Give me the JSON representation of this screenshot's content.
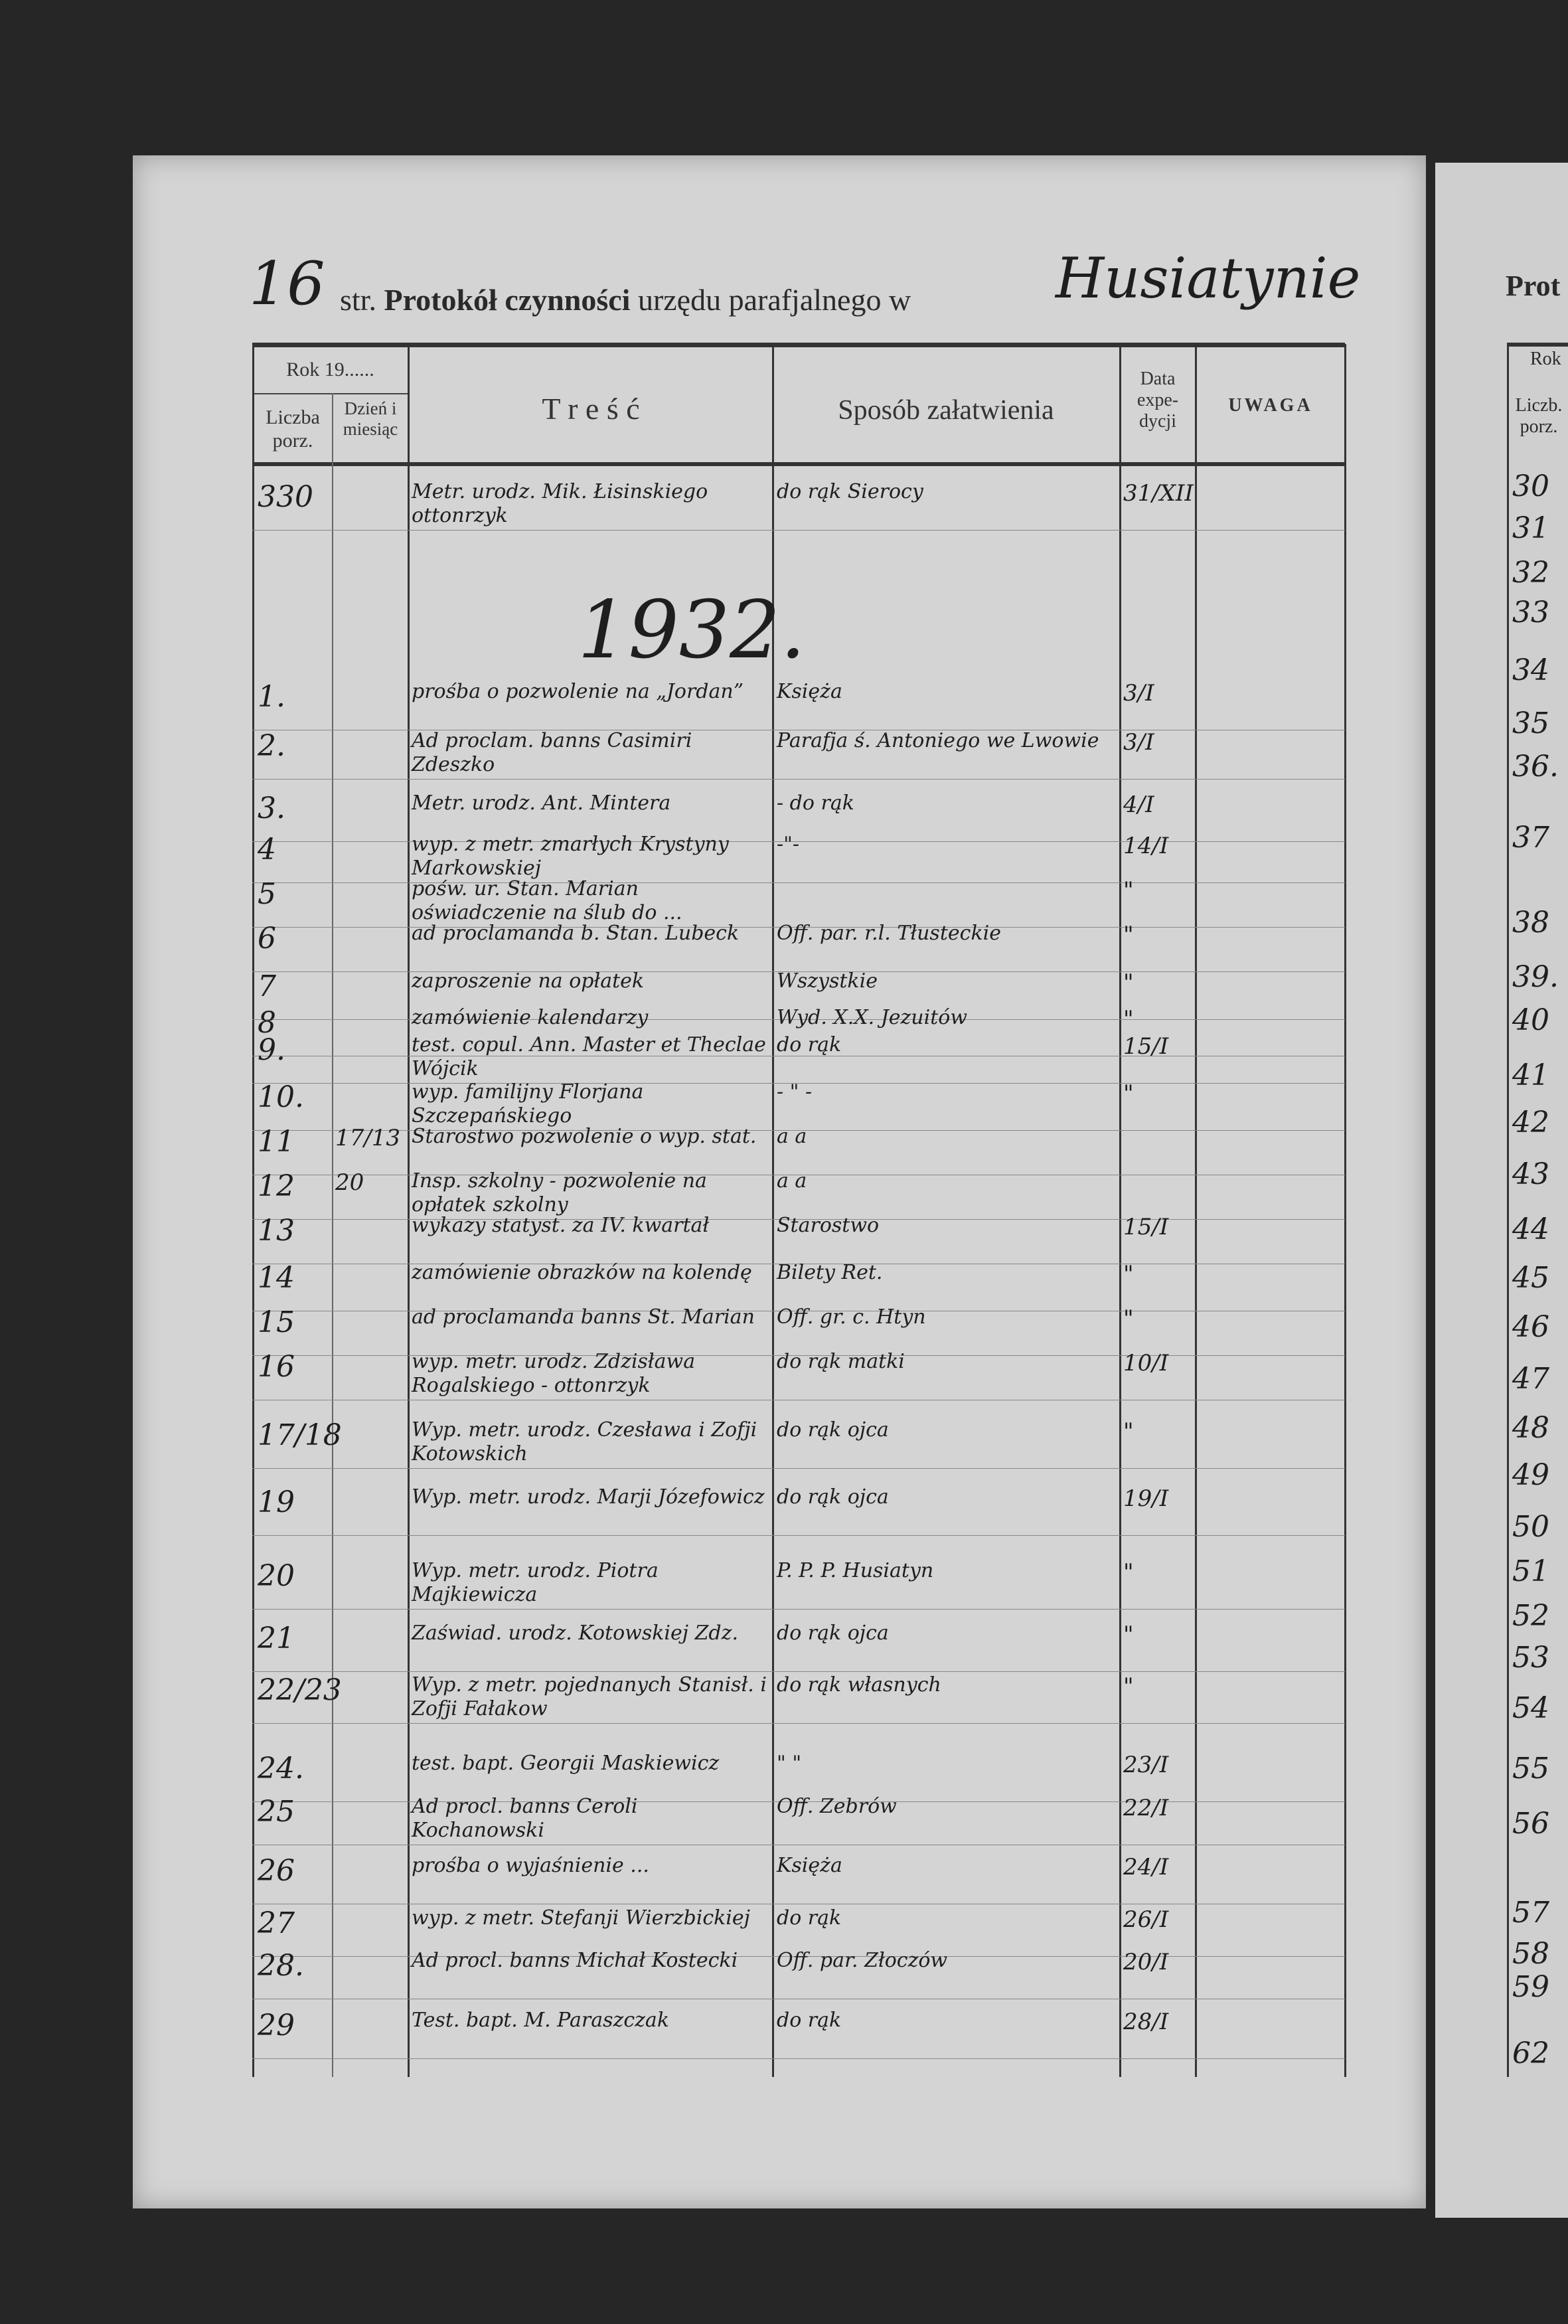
{
  "header": {
    "page_number": "16",
    "prefix": "str.",
    "title_bold": "Protokół czynności",
    "title_rest": "urzędu parafjalnego w",
    "place": "Husiatynie"
  },
  "columns": {
    "rok": "Rok 19......",
    "liczba": "Liczba porz.",
    "dzien": "Dzień i miesiąc",
    "tresc": "T r e ś ć",
    "sposob": "Sposób załatwienia",
    "data": "Data expe- dycji",
    "uwaga": "UWAGA"
  },
  "year_heading": "1932.",
  "entries": [
    {
      "no": "330",
      "day": "",
      "tresc": "Metr. urodz. Mik. Łisinskiego ottonrzyk",
      "sposob": "do rąk Sierocy",
      "data": "31/XII"
    },
    {
      "no": "1.",
      "day": "",
      "tresc": "prośba o pozwolenie na „Jordan”",
      "sposob": "Księża",
      "data": "3/I"
    },
    {
      "no": "2.",
      "day": "",
      "tresc": "Ad proclam. banns Casimiri Zdeszko",
      "sposob": "Parafja ś. Antoniego we Lwowie",
      "data": "3/I"
    },
    {
      "no": "3.",
      "day": "",
      "tresc": "Metr. urodz. Ant. Mintera",
      "sposob": "- do rąk",
      "data": "4/I"
    },
    {
      "no": "4",
      "day": "",
      "tresc": "wyp. z metr. zmarłych Krystyny Markowskiej",
      "sposob": "-\"-",
      "data": "14/I"
    },
    {
      "no": "5",
      "day": "",
      "tresc": "pośw. ur. Stan. Marian oświadczenie na ślub do ...",
      "sposob": "",
      "data": "\""
    },
    {
      "no": "6",
      "day": "",
      "tresc": "ad proclamanda b. Stan. Lubeck",
      "sposob": "Off. par. r.l. Tłusteckie",
      "data": "\""
    },
    {
      "no": "7",
      "day": "",
      "tresc": "zaproszenie na opłatek",
      "sposob": "Wszystkie",
      "data": "\""
    },
    {
      "no": "8",
      "day": "",
      "tresc": "zamówienie kalendarzy",
      "sposob": "Wyd. X.X. Jezuitów",
      "data": "\""
    },
    {
      "no": "9.",
      "day": "",
      "tresc": "test. copul. Ann. Master et Theclae Wójcik",
      "sposob": "do rąk",
      "data": "15/I"
    },
    {
      "no": "10.",
      "day": "",
      "tresc": "wyp. familijny Florjana Szczepańskiego",
      "sposob": "- \" -",
      "data": "\""
    },
    {
      "no": "11",
      "day": "17/13",
      "tresc": "Starostwo pozwolenie o wyp. stat.",
      "sposob": "a a",
      "data": ""
    },
    {
      "no": "12",
      "day": "20",
      "tresc": "Insp. szkolny - pozwolenie na opłatek szkolny",
      "sposob": "a a",
      "data": ""
    },
    {
      "no": "13",
      "day": "",
      "tresc": "wykazy statyst. za IV. kwartał",
      "sposob": "Starostwo",
      "data": "15/I"
    },
    {
      "no": "14",
      "day": "",
      "tresc": "zamówienie obrazków na kolendę",
      "sposob": "Bilety Ret.",
      "data": "\""
    },
    {
      "no": "15",
      "day": "",
      "tresc": "ad proclamanda banns St. Marian",
      "sposob": "Off. gr. c. Htyn",
      "data": "\""
    },
    {
      "no": "16",
      "day": "",
      "tresc": "wyp. metr. urodz. Zdzisława Rogalskiego - ottonrzyk",
      "sposob": "do rąk matki",
      "data": "10/I"
    },
    {
      "no": "17/18",
      "day": "",
      "tresc": "Wyp. metr. urodz. Czesława i Zofji Kotowskich",
      "sposob": "do rąk ojca",
      "data": "\""
    },
    {
      "no": "19",
      "day": "",
      "tresc": "Wyp. metr. urodz. Marji Józefowicz",
      "sposob": "do rąk ojca",
      "data": "19/I"
    },
    {
      "no": "20",
      "day": "",
      "tresc": "Wyp. metr. urodz. Piotra Majkiewicza",
      "sposob": "P. P. P. Husiatyn",
      "data": "\""
    },
    {
      "no": "21",
      "day": "",
      "tresc": "Zaświad. urodz. Kotowskiej Zdz.",
      "sposob": "do rąk ojca",
      "data": "\""
    },
    {
      "no": "22/23",
      "day": "",
      "tresc": "Wyp. z metr. pojednanych Stanisł. i Zofji Fałakow",
      "sposob": "do rąk własnych",
      "data": "\""
    },
    {
      "no": "24.",
      "day": "",
      "tresc": "test. bapt. Georgii Maskiewicz",
      "sposob": "\" \"",
      "data": "23/I"
    },
    {
      "no": "25",
      "day": "",
      "tresc": "Ad procl. banns Ceroli Kochanowski",
      "sposob": "Off. Zebrów",
      "data": "22/I"
    },
    {
      "no": "26",
      "day": "",
      "tresc": "prośba o wyjaśnienie ...",
      "sposob": "Księża",
      "data": "24/I"
    },
    {
      "no": "27",
      "day": "",
      "tresc": "wyp. z metr. Stefanji Wierzbickiej",
      "sposob": "do rąk",
      "data": "26/I"
    },
    {
      "no": "28.",
      "day": "",
      "tresc": "Ad procl. banns Michał Kostecki",
      "sposob": "Off. par. Złoczów",
      "data": "20/I"
    },
    {
      "no": "29",
      "day": "",
      "tresc": "Test. bapt. M. Paraszczak",
      "sposob": "do rąk",
      "data": "28/I"
    }
  ],
  "next_page": {
    "title": "Prot",
    "rok": "Rok",
    "liczba": "Liczb. porz.",
    "numbers": [
      "30",
      "31",
      "32",
      "33",
      "34",
      "35",
      "36.",
      "37",
      "38",
      "39.",
      "40",
      "41",
      "42",
      "43",
      "44",
      "45",
      "46",
      "47",
      "48",
      "49",
      "50",
      "51",
      "52",
      "53",
      "54",
      "55",
      "56",
      "57",
      "58",
      "59",
      "62"
    ]
  }
}
